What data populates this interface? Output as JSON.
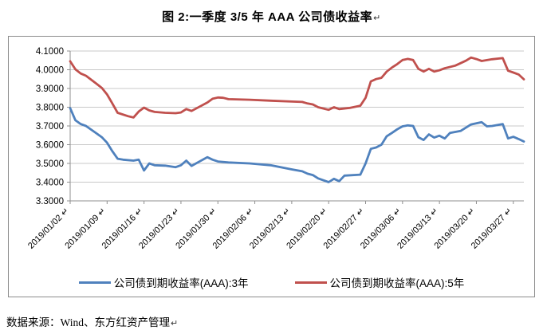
{
  "page": {
    "title": "图 2:一季度 3/5 年 AAA 公司债收益率",
    "return_mark": "↵",
    "source_note": "数据来源：Wind、东方红资产管理"
  },
  "chart_data": {
    "type": "line",
    "title": "图 2:一季度 3/5 年 AAA 公司债收益率",
    "xlabel": "",
    "ylabel": "",
    "x_axis": {
      "tick_labels": [
        "2019/01/02",
        "2019/01/09",
        "2019/01/16",
        "2019/01/23",
        "2019/01/30",
        "2019/02/06",
        "2019/02/13",
        "2019/02/20",
        "2019/02/27",
        "2019/03/06",
        "2019/03/13",
        "2019/03/20",
        "2019/03/27"
      ],
      "tick_interval_days": 7,
      "day_span": 86,
      "label_rotation_deg": -45
    },
    "y_axis": {
      "min": 3.3,
      "max": 4.1,
      "step": 0.1,
      "decimals": 4
    },
    "grid": true,
    "legend_position": "bottom",
    "colors": {
      "grid": "#c8c8c8",
      "axis": "#8f8f8f"
    },
    "series": [
      {
        "name": "公司债到期收益率(AAA):3年",
        "color": "#4F81BD",
        "points": [
          [
            0,
            3.795
          ],
          [
            1,
            3.73
          ],
          [
            2,
            3.71
          ],
          [
            3,
            3.7
          ],
          [
            5,
            3.66
          ],
          [
            6,
            3.64
          ],
          [
            7,
            3.61
          ],
          [
            8,
            3.565
          ],
          [
            9,
            3.525
          ],
          [
            10,
            3.52
          ],
          [
            12,
            3.515
          ],
          [
            13,
            3.52
          ],
          [
            14,
            3.462
          ],
          [
            15,
            3.5
          ],
          [
            16,
            3.49
          ],
          [
            18,
            3.488
          ],
          [
            20,
            3.48
          ],
          [
            21,
            3.49
          ],
          [
            22,
            3.515
          ],
          [
            23,
            3.487
          ],
          [
            26,
            3.533
          ],
          [
            27,
            3.52
          ],
          [
            28,
            3.51
          ],
          [
            30,
            3.505
          ],
          [
            34,
            3.5
          ],
          [
            38,
            3.49
          ],
          [
            42,
            3.468
          ],
          [
            44,
            3.458
          ],
          [
            45,
            3.445
          ],
          [
            46,
            3.438
          ],
          [
            47,
            3.42
          ],
          [
            49,
            3.4
          ],
          [
            50,
            3.418
          ],
          [
            51,
            3.405
          ],
          [
            52,
            3.435
          ],
          [
            55,
            3.44
          ],
          [
            56,
            3.5
          ],
          [
            57,
            3.578
          ],
          [
            58,
            3.585
          ],
          [
            59,
            3.6
          ],
          [
            60,
            3.645
          ],
          [
            61,
            3.663
          ],
          [
            62,
            3.682
          ],
          [
            63,
            3.698
          ],
          [
            64,
            3.703
          ],
          [
            65,
            3.7
          ],
          [
            66,
            3.64
          ],
          [
            67,
            3.625
          ],
          [
            68,
            3.655
          ],
          [
            69,
            3.638
          ],
          [
            70,
            3.648
          ],
          [
            71,
            3.633
          ],
          [
            72,
            3.663
          ],
          [
            74,
            3.673
          ],
          [
            76,
            3.708
          ],
          [
            78,
            3.72
          ],
          [
            79,
            3.698
          ],
          [
            80,
            3.7
          ],
          [
            82,
            3.71
          ],
          [
            83,
            3.633
          ],
          [
            84,
            3.642
          ],
          [
            85,
            3.63
          ],
          [
            86,
            3.617
          ]
        ]
      },
      {
        "name": "公司债到期收益率(AAA):5年",
        "color": "#C0504D",
        "points": [
          [
            0,
            4.045
          ],
          [
            1,
            4.002
          ],
          [
            2,
            3.98
          ],
          [
            3,
            3.968
          ],
          [
            5,
            3.925
          ],
          [
            6,
            3.903
          ],
          [
            7,
            3.868
          ],
          [
            8,
            3.82
          ],
          [
            9,
            3.77
          ],
          [
            11,
            3.752
          ],
          [
            12,
            3.745
          ],
          [
            13,
            3.777
          ],
          [
            14,
            3.798
          ],
          [
            15,
            3.783
          ],
          [
            16,
            3.775
          ],
          [
            18,
            3.77
          ],
          [
            20,
            3.768
          ],
          [
            21,
            3.772
          ],
          [
            22,
            3.79
          ],
          [
            23,
            3.78
          ],
          [
            26,
            3.825
          ],
          [
            27,
            3.845
          ],
          [
            28,
            3.852
          ],
          [
            29,
            3.85
          ],
          [
            30,
            3.843
          ],
          [
            34,
            3.84
          ],
          [
            38,
            3.835
          ],
          [
            42,
            3.83
          ],
          [
            44,
            3.828
          ],
          [
            45,
            3.82
          ],
          [
            46,
            3.815
          ],
          [
            47,
            3.8
          ],
          [
            49,
            3.786
          ],
          [
            50,
            3.8
          ],
          [
            51,
            3.79
          ],
          [
            53,
            3.796
          ],
          [
            55,
            3.808
          ],
          [
            56,
            3.85
          ],
          [
            57,
            3.938
          ],
          [
            58,
            3.95
          ],
          [
            59,
            3.957
          ],
          [
            60,
            3.99
          ],
          [
            61,
            4.012
          ],
          [
            62,
            4.03
          ],
          [
            63,
            4.052
          ],
          [
            64,
            4.058
          ],
          [
            65,
            4.052
          ],
          [
            66,
            4.005
          ],
          [
            67,
            3.99
          ],
          [
            68,
            4.005
          ],
          [
            69,
            3.99
          ],
          [
            70,
            3.997
          ],
          [
            71,
            4.008
          ],
          [
            73,
            4.022
          ],
          [
            75,
            4.048
          ],
          [
            76,
            4.065
          ],
          [
            77,
            4.057
          ],
          [
            78,
            4.047
          ],
          [
            80,
            4.056
          ],
          [
            82,
            4.062
          ],
          [
            83,
            3.995
          ],
          [
            84,
            3.985
          ],
          [
            85,
            3.975
          ],
          [
            86,
            3.949
          ]
        ]
      }
    ]
  }
}
